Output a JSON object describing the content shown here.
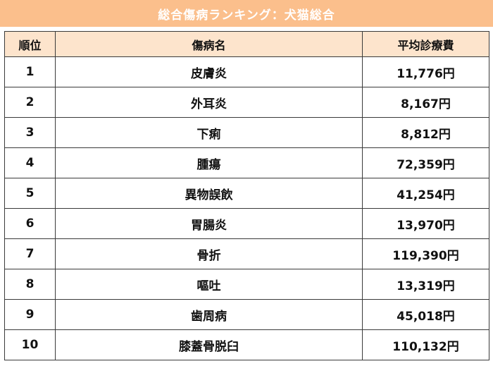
{
  "title": "総合傷病ランキング：犬猫総合",
  "table": {
    "headers": [
      "順位",
      "傷病名",
      "平均診療費"
    ],
    "rows": [
      {
        "rank": "1",
        "disease": "皮膚炎",
        "cost": "11,776円"
      },
      {
        "rank": "2",
        "disease": "外耳炎",
        "cost": "8,167円"
      },
      {
        "rank": "3",
        "disease": "下痢",
        "cost": "8,812円"
      },
      {
        "rank": "4",
        "disease": "腫瘍",
        "cost": "72,359円"
      },
      {
        "rank": "5",
        "disease": "異物誤飲",
        "cost": "41,254円"
      },
      {
        "rank": "6",
        "disease": "胃腸炎",
        "cost": "13,970円"
      },
      {
        "rank": "7",
        "disease": "骨折",
        "cost": "119,390円"
      },
      {
        "rank": "8",
        "disease": "嘔吐",
        "cost": "13,319円"
      },
      {
        "rank": "9",
        "disease": "歯周病",
        "cost": "45,018円"
      },
      {
        "rank": "10",
        "disease": "膝蓋骨脱臼",
        "cost": "110,132円"
      }
    ]
  },
  "colors": {
    "title_bg": "#fbbf8c",
    "header_bg": "#fde4cc",
    "border": "#3a3a3a"
  }
}
